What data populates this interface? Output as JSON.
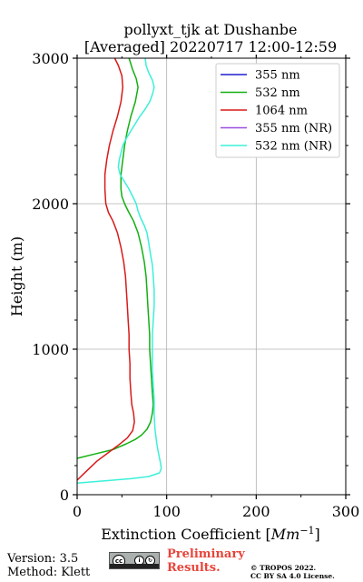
{
  "title_line1": "pollyxt_tjk at Dushanbe",
  "title_line2": "[Averaged] 20220717 12:00-12:59",
  "footer": {
    "version": "Version: 3.5",
    "method": "Method: Klett",
    "preliminary_line1": "Preliminary",
    "preliminary_line2": "Results.",
    "copyright_line1": "© TROPOS 2022.",
    "copyright_line2": "CC BY SA 4.0 License.",
    "cc_icon": "creative-commons-by-sa-icon"
  },
  "chart_data": {
    "type": "line",
    "title": "pollyxt_tjk at Dushanbe [Averaged] 20220717 12:00-12:59",
    "xlabel": "Extinction Coefficient [Mm⁻¹]",
    "ylabel": "Height (m)",
    "xlim": [
      0,
      300
    ],
    "ylim": [
      0,
      3000
    ],
    "xticks": [
      0,
      100,
      200,
      300
    ],
    "yticks": [
      0,
      1000,
      2000,
      3000
    ],
    "grid": true,
    "legend_position": "top-right",
    "series": [
      {
        "name": "355 nm",
        "color": "#1f1fd0",
        "points": []
      },
      {
        "name": "532 nm",
        "color": "#13b013",
        "points": [
          [
            0,
            250
          ],
          [
            20,
            280
          ],
          [
            40,
            310
          ],
          [
            55,
            350
          ],
          [
            65,
            380
          ],
          [
            72,
            410
          ],
          [
            78,
            450
          ],
          [
            82,
            500
          ],
          [
            84,
            560
          ],
          [
            85,
            620
          ],
          [
            84,
            700
          ],
          [
            83,
            800
          ],
          [
            82,
            900
          ],
          [
            81,
            1000
          ],
          [
            81,
            1100
          ],
          [
            80,
            1200
          ],
          [
            79,
            1300
          ],
          [
            78,
            1400
          ],
          [
            77,
            1500
          ],
          [
            75,
            1600
          ],
          [
            72,
            1700
          ],
          [
            68,
            1800
          ],
          [
            63,
            1880
          ],
          [
            57,
            1950
          ],
          [
            53,
            2000
          ],
          [
            50,
            2050
          ],
          [
            49,
            2100
          ],
          [
            49,
            2200
          ],
          [
            51,
            2300
          ],
          [
            53,
            2400
          ],
          [
            56,
            2500
          ],
          [
            60,
            2600
          ],
          [
            65,
            2700
          ],
          [
            68,
            2800
          ],
          [
            66,
            2860
          ],
          [
            62,
            2920
          ],
          [
            58,
            3000
          ]
        ]
      },
      {
        "name": "1064 nm",
        "color": "#d81a1a",
        "points": [
          [
            0,
            100
          ],
          [
            10,
            160
          ],
          [
            22,
            230
          ],
          [
            35,
            290
          ],
          [
            46,
            340
          ],
          [
            56,
            390
          ],
          [
            62,
            440
          ],
          [
            64,
            500
          ],
          [
            63,
            560
          ],
          [
            61,
            620
          ],
          [
            60,
            700
          ],
          [
            59,
            800
          ],
          [
            59,
            900
          ],
          [
            58,
            1000
          ],
          [
            58,
            1100
          ],
          [
            57,
            1200
          ],
          [
            56,
            1300
          ],
          [
            55,
            1400
          ],
          [
            54,
            1500
          ],
          [
            52,
            1600
          ],
          [
            49,
            1700
          ],
          [
            45,
            1800
          ],
          [
            40,
            1880
          ],
          [
            35,
            1940
          ],
          [
            32,
            2000
          ],
          [
            31,
            2100
          ],
          [
            31,
            2200
          ],
          [
            33,
            2300
          ],
          [
            36,
            2400
          ],
          [
            40,
            2500
          ],
          [
            45,
            2600
          ],
          [
            49,
            2700
          ],
          [
            51,
            2800
          ],
          [
            50,
            2880
          ],
          [
            46,
            2950
          ],
          [
            42,
            3000
          ]
        ]
      },
      {
        "name": "355 nm (NR)",
        "color": "#9a4fe0",
        "points": []
      },
      {
        "name": "532 nm (NR)",
        "color": "#3cf0d8",
        "points": [
          [
            0,
            80
          ],
          [
            20,
            90
          ],
          [
            40,
            100
          ],
          [
            60,
            110
          ],
          [
            80,
            125
          ],
          [
            92,
            150
          ],
          [
            94,
            180
          ],
          [
            93,
            220
          ],
          [
            91,
            280
          ],
          [
            89,
            350
          ],
          [
            87,
            450
          ],
          [
            86,
            550
          ],
          [
            86,
            650
          ],
          [
            85,
            750
          ],
          [
            84,
            850
          ],
          [
            84,
            1000
          ],
          [
            84,
            1100
          ],
          [
            85,
            1200
          ],
          [
            86,
            1300
          ],
          [
            86,
            1400
          ],
          [
            85,
            1500
          ],
          [
            84,
            1580
          ],
          [
            82,
            1650
          ],
          [
            80,
            1730
          ],
          [
            78,
            1800
          ],
          [
            75,
            1850
          ],
          [
            71,
            1900
          ],
          [
            68,
            1950
          ],
          [
            66,
            2000
          ],
          [
            62,
            2050
          ],
          [
            58,
            2100
          ],
          [
            53,
            2150
          ],
          [
            48,
            2200
          ],
          [
            46,
            2250
          ],
          [
            47,
            2300
          ],
          [
            49,
            2350
          ],
          [
            51,
            2400
          ],
          [
            55,
            2450
          ],
          [
            60,
            2500
          ],
          [
            65,
            2550
          ],
          [
            70,
            2600
          ],
          [
            76,
            2650
          ],
          [
            81,
            2700
          ],
          [
            84,
            2750
          ],
          [
            86,
            2800
          ],
          [
            84,
            2850
          ],
          [
            80,
            2900
          ],
          [
            77,
            2950
          ],
          [
            76,
            3000
          ]
        ]
      }
    ]
  }
}
